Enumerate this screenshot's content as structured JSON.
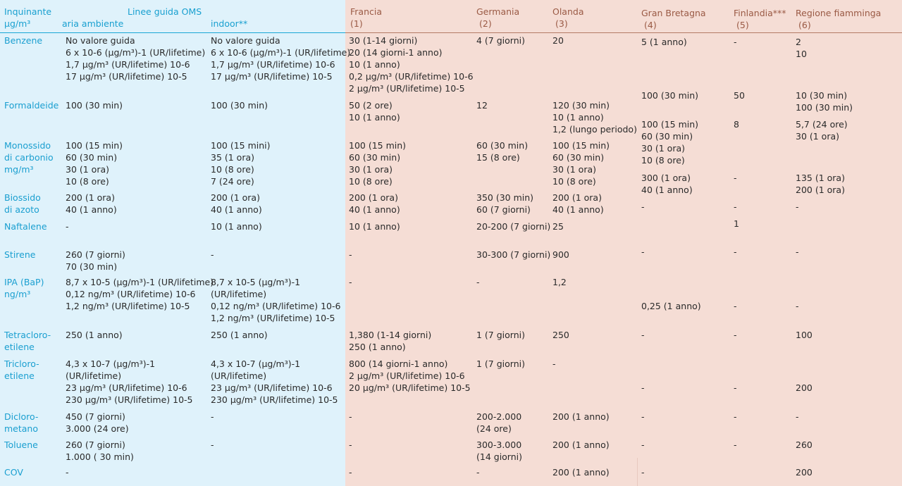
{
  "header": {
    "pollutant": [
      "Inquinante",
      "µg/m³"
    ],
    "oms_title": "Linee guida OMS",
    "ambient": "aria ambiente",
    "indoor": "indoor**",
    "countries": [
      {
        "name": "Francia",
        "num": "(1)"
      },
      {
        "name": "Germania",
        "num": "(2)"
      },
      {
        "name": "Olanda",
        "num": "(3)"
      },
      {
        "name": "Gran Bretagna",
        "num": "(4)"
      },
      {
        "name": "Finlandia***",
        "num": "(5)"
      },
      {
        "name": "Regione fiamminga",
        "num": "(6)"
      }
    ]
  },
  "rows": [
    {
      "pollutant": [
        "Benzene"
      ],
      "ambient": [
        "No valore guida",
        "6 x 10-6 (µg/m³)-1 (UR/lifetime)",
        "1,7 µg/m³ (UR/lifetime) 10-6",
        "17 µg/m³ (UR/lifetime) 10-5"
      ],
      "indoor": [
        "No valore guida",
        "6 x 10-6 (µg/m³)-1 (UR/lifetime)",
        "1,7 µg/m³ (UR/lifetime) 10-6",
        "17 µg/m³ (UR/lifetime) 10-5"
      ],
      "francia": [
        "30 (1-14 giorni)",
        "20 (14 giorni-1 anno)",
        "10 (1 anno)",
        "0,2 µg/m³ (UR/lifetime) 10-6",
        "2 µg/m³ (UR/lifetime) 10-5"
      ],
      "germania": [
        "4  (7 giorni)"
      ],
      "olanda": [
        "20"
      ],
      "gb": [
        "5 (1 anno)"
      ],
      "finlandia": [
        "-"
      ],
      "fiamminga": [
        "2",
        "10"
      ]
    },
    {
      "pollutant": [
        "Formaldeide"
      ],
      "ambient": [
        "100 (30 min)"
      ],
      "indoor": [
        "100 (30 min)"
      ],
      "francia": [
        "50 (2 ore)",
        "10 (1 anno)"
      ],
      "germania": [
        "12"
      ],
      "olanda": [
        "120 (30 min)",
        "10 (1 anno)",
        "1,2 (lungo periodo)"
      ],
      "gb": [
        "100 (30 min)"
      ],
      "finlandia": [
        "50"
      ],
      "fiamminga": [
        "10 (30 min)",
        "100 (30 min)"
      ]
    },
    {
      "pollutant": [
        "Monossido",
        "di carbonio",
        "mg/m³"
      ],
      "ambient": [
        "100 (15 min)",
        "60 (30 min)",
        "30 (1 ora)",
        "10 (8 ore)"
      ],
      "indoor": [
        "100 (15 mini)",
        "35 (1 ora)",
        "10 (8 ore)",
        "7 (24 ore)"
      ],
      "francia": [
        "100 (15 min)",
        "60 (30 min)",
        "30 (1 ora)",
        "10 (8 ore)"
      ],
      "germania": [
        "60 (30 min)",
        "15 (8 ore)"
      ],
      "olanda": [
        "100 (15 min)",
        "60 (30 min)",
        "30 (1 ora)",
        "10 (8 ore)"
      ],
      "gb": [
        "100 (15 min)",
        "60 (30 min)",
        "30 (1 ora)",
        "10 (8 ore)"
      ],
      "finlandia": [
        "8"
      ],
      "fiamminga": [
        "5,7 (24 ore)",
        "30 (1 ora)"
      ]
    },
    {
      "pollutant": [
        "Biossido",
        "di azoto"
      ],
      "ambient": [
        "200 (1 ora)",
        "40 (1 anno)"
      ],
      "indoor": [
        "200 (1 ora)",
        "40 (1 anno)"
      ],
      "francia": [
        "200 (1 ora)",
        "40 (1 anno)"
      ],
      "germania": [
        "350 (30 min)",
        "60 (7 giorni)"
      ],
      "olanda": [
        "200 (1 ora)",
        "40 (1 anno)"
      ],
      "gb": [
        "300 (1 ora)",
        "40 (1 anno)"
      ],
      "finlandia": [
        "-"
      ],
      "fiamminga": [
        "135 (1 ora)",
        "200 (1 ora)"
      ]
    },
    {
      "pollutant": [
        "Naftalene"
      ],
      "ambient": [
        "-"
      ],
      "indoor": [
        "10 (1 anno)"
      ],
      "francia": [
        "10 (1 anno)"
      ],
      "germania": [
        "20-200 (7 giorni)"
      ],
      "olanda": [
        "25"
      ],
      "gb": [
        "-"
      ],
      "finlandia": [
        "-"
      ],
      "fiamminga": [
        "-"
      ]
    },
    {
      "pollutant": [
        "Stirene"
      ],
      "ambient": [
        "260 (7 giorni)",
        "70 (30 min)"
      ],
      "indoor": [
        "-"
      ],
      "francia": [
        "-"
      ],
      "germania": [
        "30-300 (7 giorni)"
      ],
      "olanda": [
        "900"
      ],
      "gb": [
        "-"
      ],
      "finlandia": [
        "1"
      ],
      "fiamminga": [
        "-"
      ]
    },
    {
      "pollutant": [
        "IPA (BaP)",
        "ng/m³"
      ],
      "ambient": [
        "8,7 x 10-5 (µg/m³)-1 (UR/lifetime)",
        "0,12 ng/m³ (UR/lifetime) 10-6",
        "1,2 ng/m³ (UR/lifetime) 10-5"
      ],
      "indoor": [
        "8,7 x 10-5 (µg/m³)-1",
        "(UR/lifetime)",
        "0,12 ng/m³ (UR/lifetime) 10-6",
        "1,2 ng/m³ (UR/lifetime) 10-5"
      ],
      "francia": [
        "-"
      ],
      "germania": [
        "-"
      ],
      "olanda": [
        "1,2"
      ],
      "gb": [
        "0,25 (1 anno)"
      ],
      "finlandia": [
        "-"
      ],
      "fiamminga": [
        "-"
      ]
    },
    {
      "pollutant": [
        "Tetracloro-",
        "etilene"
      ],
      "ambient": [
        "250 (1 anno)"
      ],
      "indoor": [
        "250 (1 anno)"
      ],
      "francia": [
        "1,380 (1-14 giorni)",
        "250 (1 anno)"
      ],
      "germania": [
        "1 (7 giorni)"
      ],
      "olanda": [
        "250"
      ],
      "gb": [
        "-"
      ],
      "finlandia": [
        "-"
      ],
      "fiamminga": [
        "100"
      ]
    },
    {
      "pollutant": [
        "Tricloro-",
        "etilene"
      ],
      "ambient": [
        "4,3 x 10-7 (µg/m³)-1",
        "(UR/lifetime)",
        "23 µg/m³ (UR/lifetime) 10-6",
        "230 µg/m³ (UR/lifetime) 10-5"
      ],
      "indoor": [
        "4,3 x 10-7 (µg/m³)-1",
        "(UR/lifetime)",
        "23 µg/m³ (UR/lifetime) 10-6",
        "230 µg/m³ (UR/lifetime) 10-5"
      ],
      "francia": [
        "800 (14 giorni-1 anno)",
        "2 µg/m³ (UR/lifetime) 10-6",
        "20 µg/m³ (UR/lifetime) 10-5"
      ],
      "germania": [
        "1 (7 giorni)"
      ],
      "olanda": [
        "-"
      ],
      "gb": [
        "-"
      ],
      "finlandia": [
        "-"
      ],
      "fiamminga": [
        "200"
      ]
    },
    {
      "pollutant": [
        "Dicloro-",
        "metano"
      ],
      "ambient": [
        "450 (7 giorni)",
        "3.000 (24 ore)"
      ],
      "indoor": [
        "-"
      ],
      "francia": [
        "-"
      ],
      "germania": [
        "200-2.000",
        "(24 ore)"
      ],
      "olanda": [
        "200 (1 anno)"
      ],
      "gb": [
        "-"
      ],
      "finlandia": [
        "-"
      ],
      "fiamminga": [
        "-"
      ]
    },
    {
      "pollutant": [
        "Toluene"
      ],
      "ambient": [
        "260 (7 giorni)",
        "1.000 ( 30 min)"
      ],
      "indoor": [
        "-"
      ],
      "francia": [
        "-"
      ],
      "germania": [
        "300-3.000",
        "(14 giorni)"
      ],
      "olanda": [
        "200 (1 anno)"
      ],
      "gb": [
        "-"
      ],
      "finlandia": [
        "-"
      ],
      "fiamminga": [
        "260"
      ]
    },
    {
      "pollutant": [
        "COV"
      ],
      "ambient": [
        "-"
      ],
      "indoor": [],
      "francia": [
        "-"
      ],
      "germania": [
        "-"
      ],
      "olanda": [
        "200 (1 anno)"
      ],
      "gb": [
        "-"
      ],
      "finlandia": [
        "-"
      ],
      "fiamminga": [
        "200"
      ]
    }
  ]
}
